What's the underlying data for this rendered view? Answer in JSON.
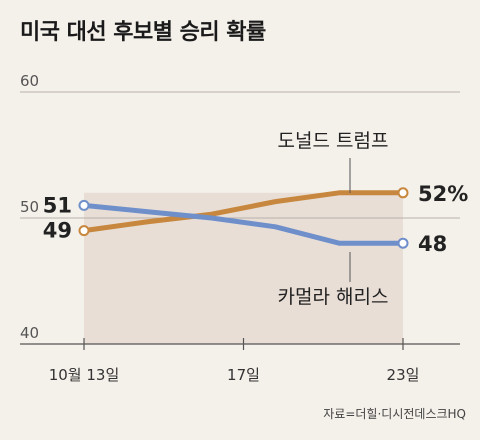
{
  "chart_data": {
    "type": "line",
    "title": "미국 대선 후보별 승리 확률",
    "x": [
      0,
      1,
      2,
      3,
      4,
      5
    ],
    "x_ticks": [
      {
        "x": 0,
        "label": "10월 13일"
      },
      {
        "x": 2.5,
        "label": "17일"
      },
      {
        "x": 5,
        "label": "23일"
      }
    ],
    "ylim": [
      40,
      60
    ],
    "y_ticks": [
      "40",
      "50",
      "60"
    ],
    "grid": "horizontal",
    "series": [
      {
        "name": "도널드 트럼프",
        "color": "#c8873e",
        "values": [
          49,
          49.7,
          50.3,
          51.3,
          52,
          52
        ],
        "start_label": "49",
        "end_label": "52%"
      },
      {
        "name": "카멀라 해리스",
        "color": "#6f8fcb",
        "values": [
          51,
          50.5,
          50,
          49.3,
          48,
          48
        ],
        "start_label": "51",
        "end_label": "48"
      }
    ],
    "source": "자료=더힐·디시전데스크HQ"
  }
}
